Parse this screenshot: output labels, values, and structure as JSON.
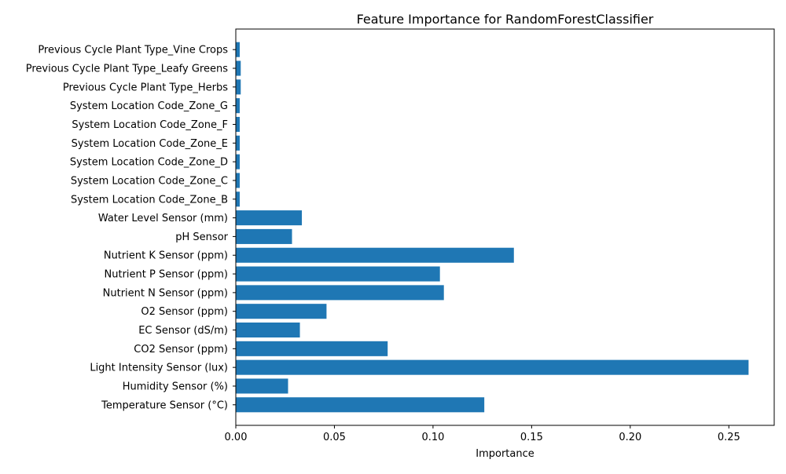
{
  "chart_data": {
    "type": "bar",
    "orientation": "horizontal",
    "title": "Feature Importance for RandomForestClassifier",
    "xlabel": "Importance",
    "ylabel": "",
    "xlim": [
      0,
      0.273
    ],
    "xticks": [
      0.0,
      0.05,
      0.1,
      0.15,
      0.2,
      0.25
    ],
    "xtick_labels": [
      "0.00",
      "0.05",
      "0.10",
      "0.15",
      "0.20",
      "0.25"
    ],
    "grid": false,
    "legend": false,
    "bar_color": "#1f77b4",
    "categories": [
      "Temperature Sensor (°C)",
      "Humidity Sensor (%)",
      "Light Intensity Sensor (lux)",
      "CO2 Sensor (ppm)",
      "EC Sensor (dS/m)",
      "O2 Sensor (ppm)",
      "Nutrient N Sensor (ppm)",
      "Nutrient P Sensor (ppm)",
      "Nutrient K Sensor (ppm)",
      "pH Sensor",
      "Water Level Sensor (mm)",
      "System Location Code_Zone_B",
      "System Location Code_Zone_C",
      "System Location Code_Zone_D",
      "System Location Code_Zone_E",
      "System Location Code_Zone_F",
      "System Location Code_Zone_G",
      "Previous Cycle Plant Type_Herbs",
      "Previous Cycle Plant Type_Leafy Greens",
      "Previous Cycle Plant Type_Vine Crops"
    ],
    "values": [
      0.126,
      0.0265,
      0.26,
      0.077,
      0.0325,
      0.046,
      0.1055,
      0.1035,
      0.141,
      0.0285,
      0.0335,
      0.002,
      0.002,
      0.002,
      0.002,
      0.002,
      0.002,
      0.0025,
      0.0025,
      0.002
    ]
  }
}
